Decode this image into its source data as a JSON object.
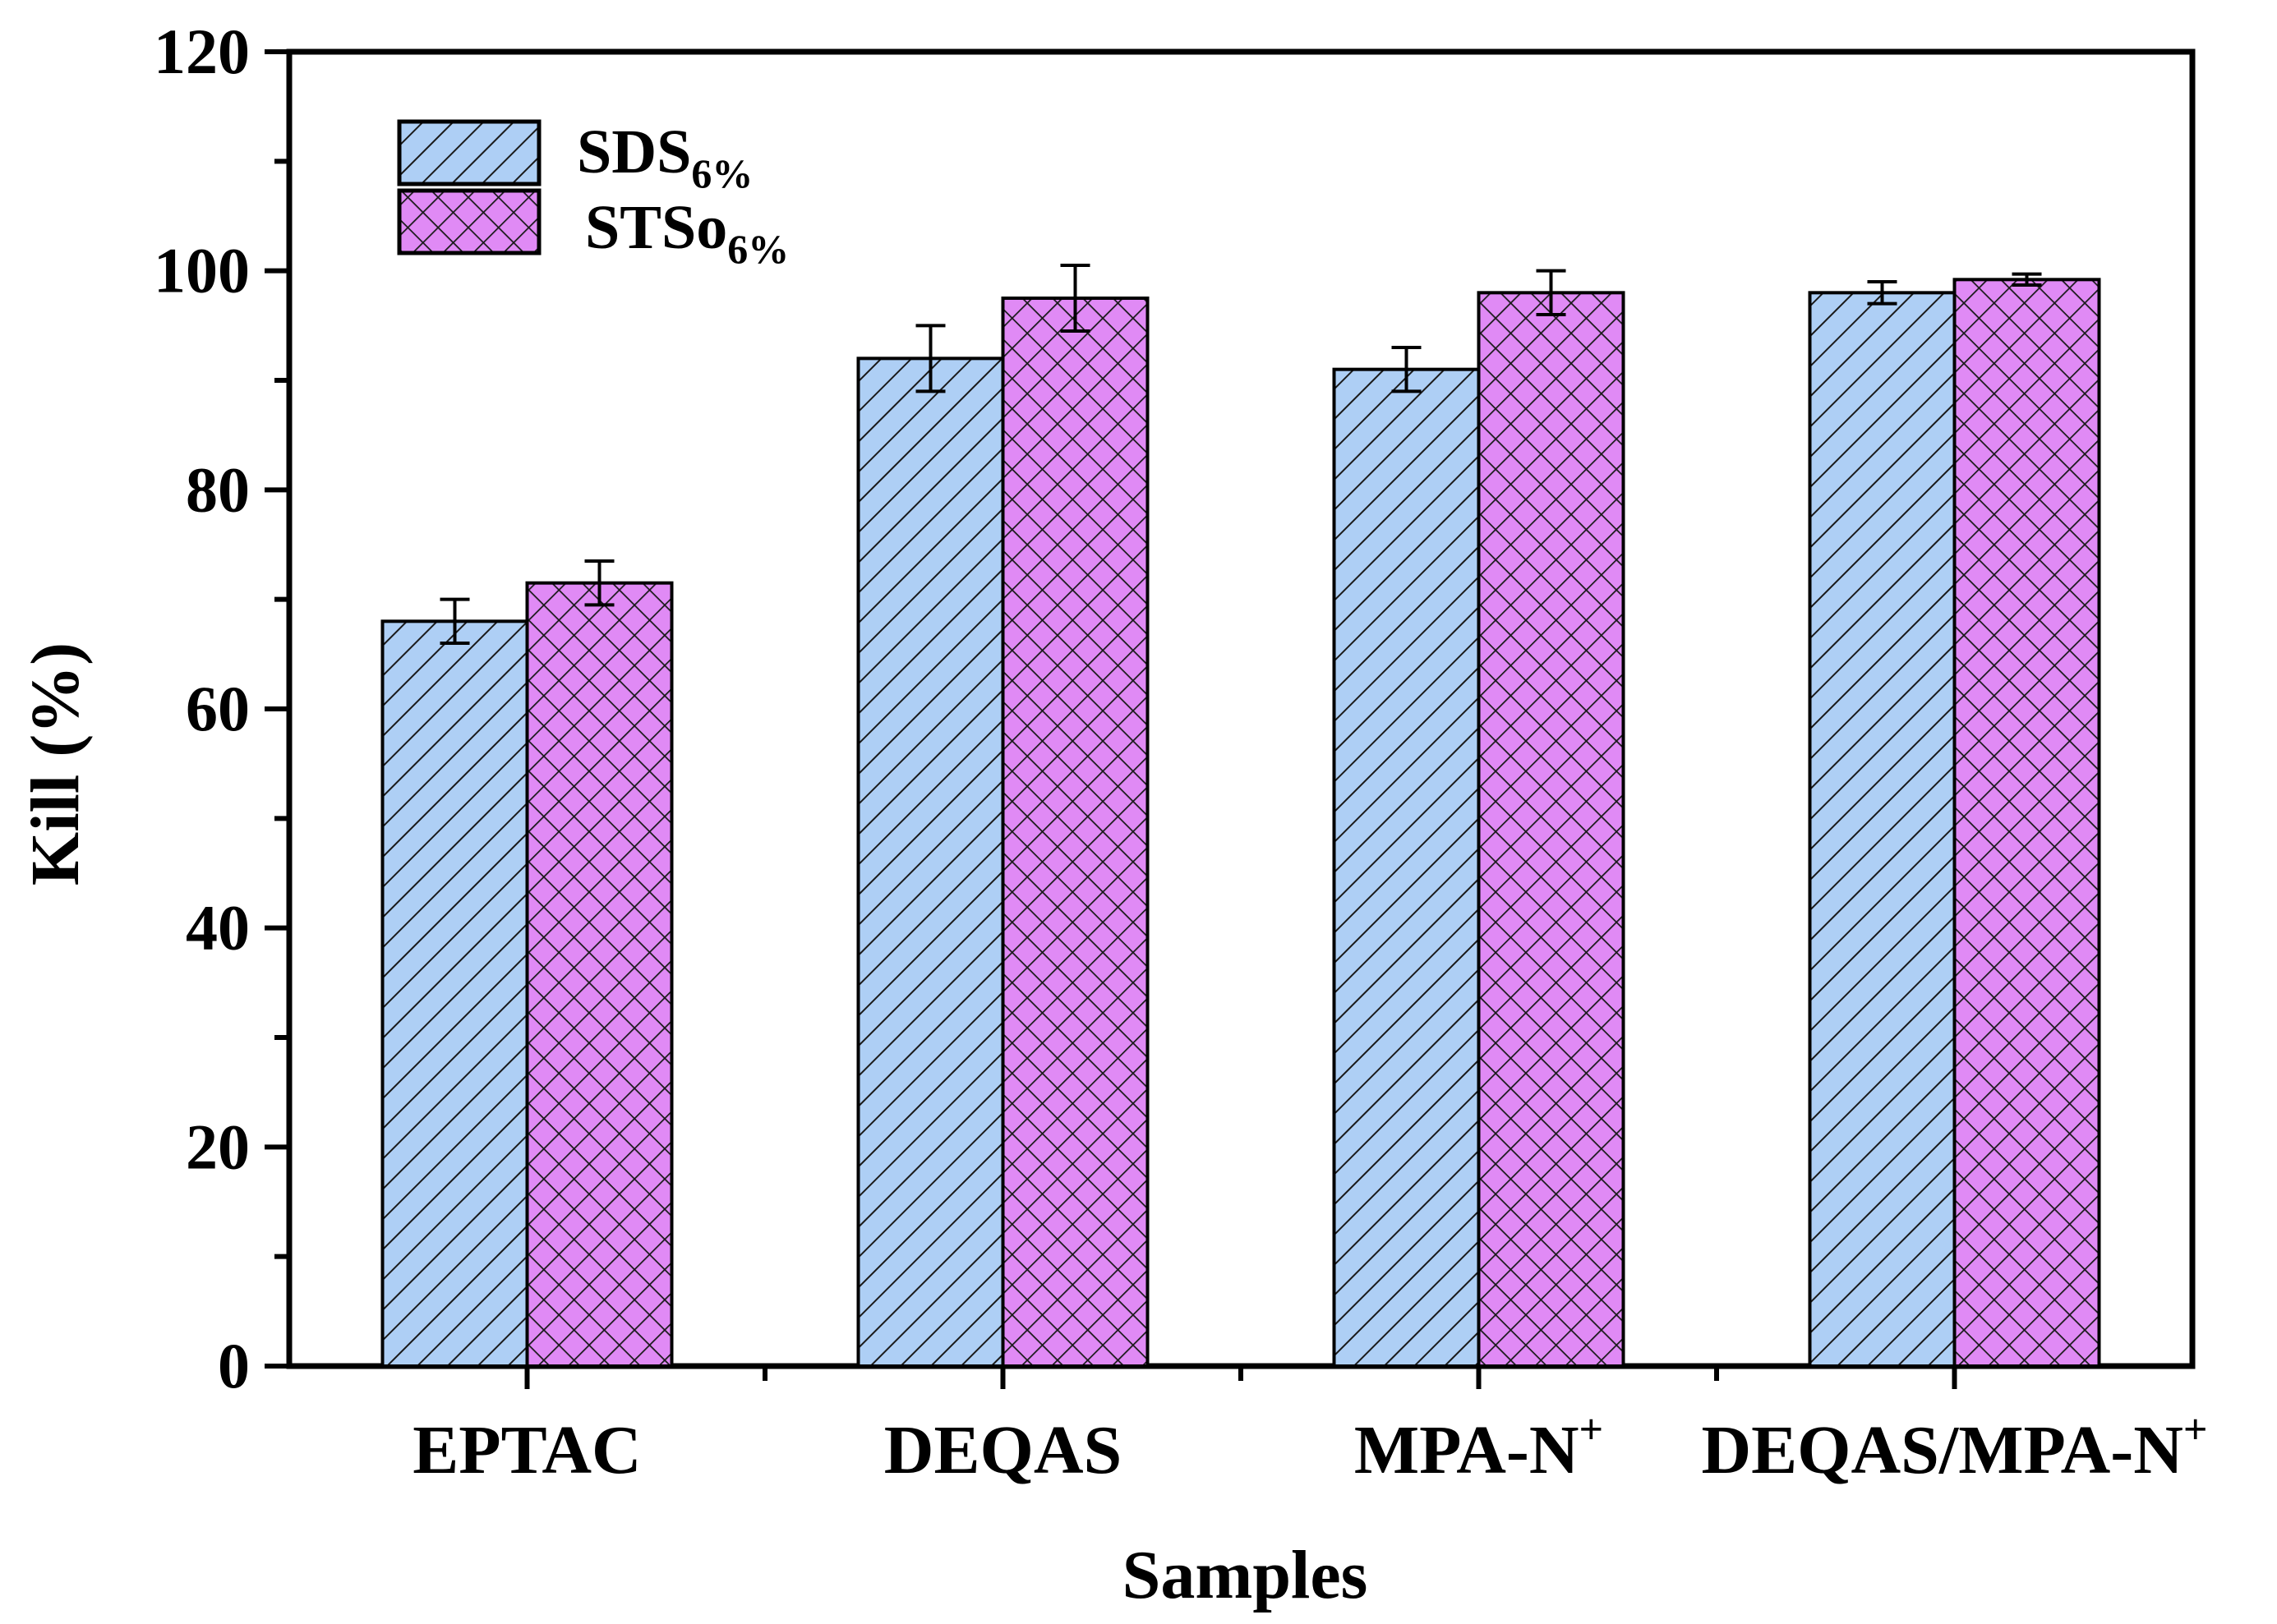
{
  "chart_data": {
    "type": "bar",
    "title": "",
    "xlabel": "Samples",
    "ylabel": "Kill (%)",
    "ylim": [
      0,
      120
    ],
    "yticks": [
      "0",
      "20",
      "40",
      "60",
      "80",
      "100",
      "120"
    ],
    "categories": [
      {
        "main": "EPTAC",
        "sup": ""
      },
      {
        "main": "DEQAS",
        "sup": ""
      },
      {
        "main": "MPA-N",
        "sup": "+"
      },
      {
        "main": "DEQAS/MPA-N",
        "sup": "+"
      }
    ],
    "series": [
      {
        "name": "SDS",
        "subscript": "6%",
        "color": "#aecff5",
        "pattern": "diagonal",
        "values": [
          68,
          92,
          91,
          98
        ],
        "errors": [
          2,
          3,
          2,
          1
        ]
      },
      {
        "name": "STSo",
        "subscript": "6%",
        "color": "#e08af5",
        "pattern": "crosshatch",
        "values": [
          71.5,
          97.5,
          98,
          99.2
        ],
        "errors": [
          2,
          3,
          2,
          0.5
        ]
      }
    ],
    "legend_position": "top-left"
  }
}
